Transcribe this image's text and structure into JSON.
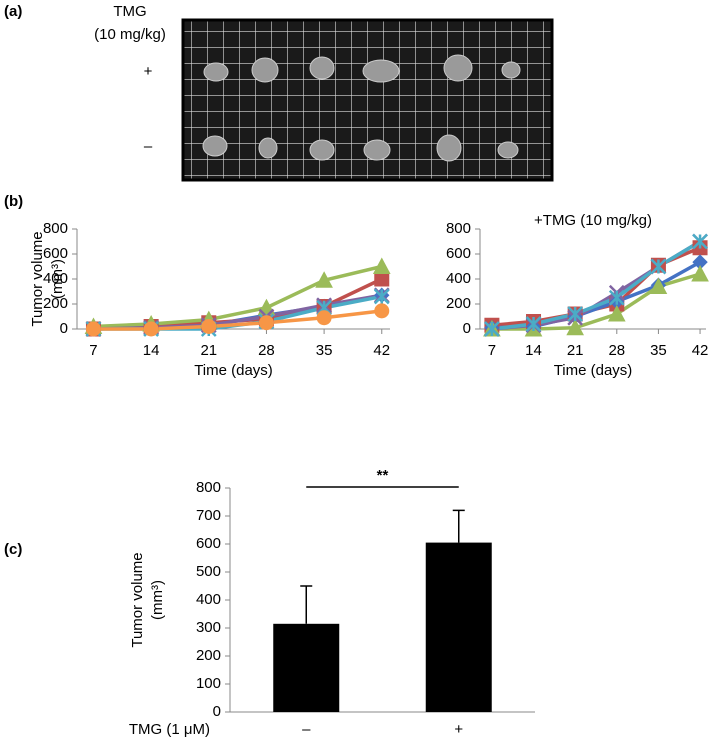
{
  "panels": [
    "(a)",
    "(b)",
    "(c)"
  ],
  "photo": {
    "title": "TMG",
    "subtitle": "(10 mg/kg)",
    "rows": [
      "+",
      "–"
    ]
  },
  "chart_data": [
    {
      "type": "line",
      "xlabel": "Time (days)",
      "ylabel": [
        "Tumor volume",
        "(mm³)"
      ],
      "x": [
        7,
        14,
        21,
        28,
        35,
        42
      ],
      "xlim": [
        5,
        43
      ],
      "xticks": [
        7,
        14,
        21,
        28,
        35,
        42
      ],
      "ylim": [
        0,
        800
      ],
      "yticks": [
        0,
        200,
        400,
        600,
        800
      ],
      "series": [
        {
          "color": "#4472c4",
          "marker": "diamond",
          "values": [
            0,
            10,
            30,
            110,
            180,
            270
          ]
        },
        {
          "color": "#c0504d",
          "marker": "square",
          "values": [
            0,
            20,
            50,
            80,
            180,
            400
          ]
        },
        {
          "color": "#9bbb59",
          "marker": "triangle",
          "values": [
            20,
            40,
            75,
            170,
            390,
            500
          ]
        },
        {
          "color": "#8064a2",
          "marker": "x",
          "values": [
            0,
            10,
            30,
            100,
            190,
            270
          ]
        },
        {
          "color": "#4bacc6",
          "marker": "star",
          "values": [
            0,
            0,
            0,
            60,
            170,
            260
          ]
        },
        {
          "color": "#f79646",
          "marker": "circle",
          "values": [
            0,
            0,
            20,
            50,
            90,
            145
          ]
        }
      ]
    },
    {
      "type": "line",
      "title": "+TMG (10 mg/kg)",
      "xlabel": "Time (days)",
      "x": [
        7,
        14,
        21,
        28,
        35,
        42
      ],
      "xlim": [
        5,
        43
      ],
      "xticks": [
        7,
        14,
        21,
        28,
        35,
        42
      ],
      "ylim": [
        0,
        800
      ],
      "yticks": [
        0,
        200,
        400,
        600,
        800
      ],
      "series": [
        {
          "color": "#c0504d",
          "marker": "square",
          "values": [
            30,
            60,
            120,
            200,
            510,
            650
          ]
        },
        {
          "color": "#4472c4",
          "marker": "diamond",
          "values": [
            10,
            20,
            100,
            220,
            350,
            535
          ]
        },
        {
          "color": "#9bbb59",
          "marker": "triangle",
          "values": [
            0,
            0,
            10,
            120,
            340,
            440
          ]
        },
        {
          "color": "#8064a2",
          "marker": "x",
          "values": [
            0,
            30,
            90,
            290,
            500,
            700
          ]
        },
        {
          "color": "#4bacc6",
          "marker": "star",
          "values": [
            0,
            40,
            120,
            250,
            500,
            700
          ]
        }
      ]
    },
    {
      "type": "bar",
      "xlabel": "TMG (1 μM)",
      "ylabel": [
        "Tumor volume",
        "(mm³)"
      ],
      "annotation": "**",
      "categories": [
        "–",
        "+"
      ],
      "values": [
        315,
        605
      ],
      "errors": [
        135,
        115
      ],
      "color": "#000000",
      "ylim": [
        0,
        800
      ],
      "yticks": [
        0,
        100,
        200,
        300,
        400,
        500,
        600,
        700,
        800
      ]
    }
  ]
}
